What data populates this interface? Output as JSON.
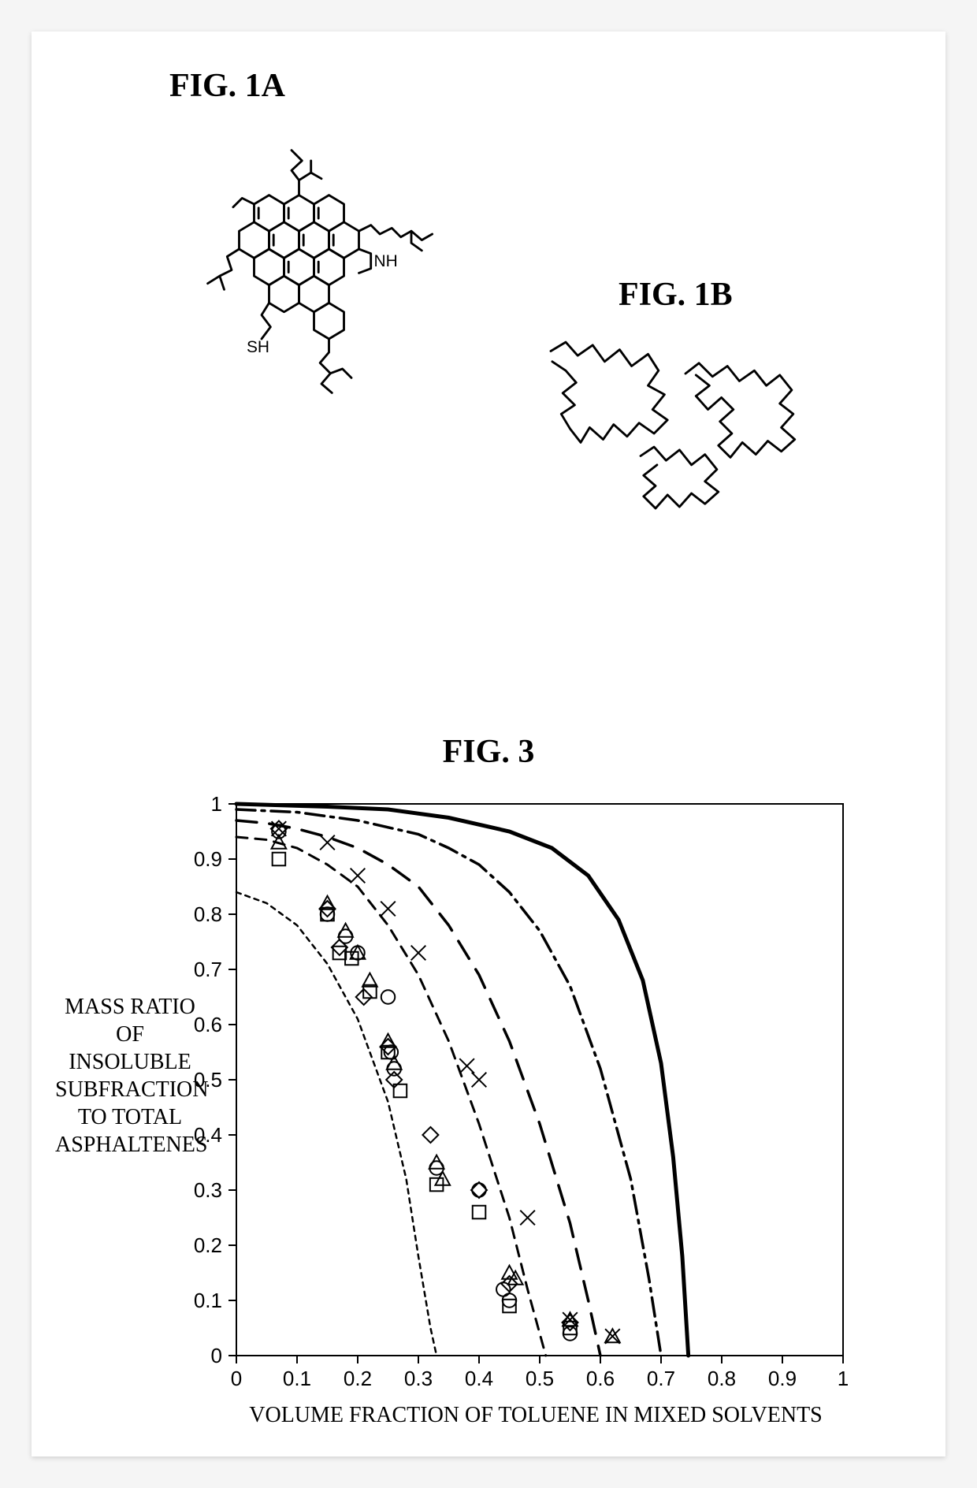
{
  "figures": {
    "a": {
      "label": "FIG. 1A",
      "atom_labels": {
        "nh": "NH",
        "sh": "SH"
      }
    },
    "b": {
      "label": "FIG. 1B"
    },
    "chart": {
      "label": "FIG. 3"
    }
  },
  "chart": {
    "type": "scatter-with-curves",
    "x_label": "VOLUME FRACTION OF TOLUENE IN MIXED SOLVENTS",
    "y_label": "MASS RATIO OF INSOLUBLE SUBFRACTION TO TOTAL ASPHALTENES",
    "xlim": [
      0,
      1
    ],
    "ylim": [
      0,
      1
    ],
    "xtick_step": 0.1,
    "ytick_step": 0.1,
    "background_color": "#ffffff",
    "axis_color": "#000000",
    "axis_width": 2,
    "tick_fontsize": 26,
    "curves": [
      {
        "name": "fine-dash",
        "dash": "6,6",
        "width": 2.5,
        "color": "#000000",
        "pts": [
          [
            0,
            0.84
          ],
          [
            0.05,
            0.82
          ],
          [
            0.1,
            0.78
          ],
          [
            0.15,
            0.71
          ],
          [
            0.2,
            0.61
          ],
          [
            0.25,
            0.46
          ],
          [
            0.28,
            0.32
          ],
          [
            0.3,
            0.18
          ],
          [
            0.32,
            0.05
          ],
          [
            0.33,
            0.0
          ]
        ]
      },
      {
        "name": "med-dash",
        "dash": "14,10",
        "width": 3.0,
        "color": "#000000",
        "pts": [
          [
            0,
            0.94
          ],
          [
            0.05,
            0.935
          ],
          [
            0.1,
            0.92
          ],
          [
            0.15,
            0.89
          ],
          [
            0.2,
            0.85
          ],
          [
            0.25,
            0.78
          ],
          [
            0.3,
            0.69
          ],
          [
            0.35,
            0.57
          ],
          [
            0.4,
            0.42
          ],
          [
            0.45,
            0.25
          ],
          [
            0.48,
            0.12
          ],
          [
            0.51,
            0.0
          ]
        ]
      },
      {
        "name": "long-dash",
        "dash": "26,16",
        "width": 3.5,
        "color": "#000000",
        "pts": [
          [
            0,
            0.97
          ],
          [
            0.05,
            0.965
          ],
          [
            0.1,
            0.955
          ],
          [
            0.15,
            0.94
          ],
          [
            0.2,
            0.92
          ],
          [
            0.25,
            0.89
          ],
          [
            0.3,
            0.85
          ],
          [
            0.35,
            0.78
          ],
          [
            0.4,
            0.69
          ],
          [
            0.45,
            0.57
          ],
          [
            0.5,
            0.42
          ],
          [
            0.55,
            0.24
          ],
          [
            0.58,
            0.1
          ],
          [
            0.6,
            0.0
          ]
        ]
      },
      {
        "name": "dash-dot",
        "dash": "24,8,4,8",
        "width": 3.5,
        "color": "#000000",
        "pts": [
          [
            0,
            0.99
          ],
          [
            0.1,
            0.985
          ],
          [
            0.2,
            0.97
          ],
          [
            0.3,
            0.945
          ],
          [
            0.35,
            0.92
          ],
          [
            0.4,
            0.89
          ],
          [
            0.45,
            0.84
          ],
          [
            0.5,
            0.77
          ],
          [
            0.55,
            0.67
          ],
          [
            0.6,
            0.52
          ],
          [
            0.65,
            0.32
          ],
          [
            0.68,
            0.14
          ],
          [
            0.7,
            0.0
          ]
        ]
      },
      {
        "name": "solid",
        "dash": "",
        "width": 5.0,
        "color": "#000000",
        "pts": [
          [
            0,
            1.0
          ],
          [
            0.15,
            0.995
          ],
          [
            0.25,
            0.99
          ],
          [
            0.35,
            0.975
          ],
          [
            0.45,
            0.95
          ],
          [
            0.52,
            0.92
          ],
          [
            0.58,
            0.87
          ],
          [
            0.63,
            0.79
          ],
          [
            0.67,
            0.68
          ],
          [
            0.7,
            0.53
          ],
          [
            0.72,
            0.36
          ],
          [
            0.735,
            0.18
          ],
          [
            0.745,
            0.0
          ]
        ]
      }
    ],
    "markers": {
      "size": 14,
      "stroke": "#000000",
      "stroke_width": 2,
      "fill": "none",
      "diamond": [
        [
          0.07,
          0.955
        ],
        [
          0.15,
          0.81
        ],
        [
          0.17,
          0.74
        ],
        [
          0.21,
          0.65
        ],
        [
          0.25,
          0.56
        ],
        [
          0.26,
          0.5
        ],
        [
          0.32,
          0.4
        ],
        [
          0.4,
          0.3
        ],
        [
          0.45,
          0.13
        ],
        [
          0.55,
          0.06
        ]
      ],
      "circle": [
        [
          0.07,
          0.95
        ],
        [
          0.15,
          0.8
        ],
        [
          0.18,
          0.76
        ],
        [
          0.2,
          0.73
        ],
        [
          0.25,
          0.65
        ],
        [
          0.255,
          0.55
        ],
        [
          0.26,
          0.52
        ],
        [
          0.33,
          0.34
        ],
        [
          0.4,
          0.3
        ],
        [
          0.44,
          0.12
        ],
        [
          0.45,
          0.1
        ],
        [
          0.55,
          0.04
        ]
      ],
      "triangle": [
        [
          0.07,
          0.93
        ],
        [
          0.15,
          0.82
        ],
        [
          0.18,
          0.77
        ],
        [
          0.2,
          0.73
        ],
        [
          0.22,
          0.68
        ],
        [
          0.25,
          0.57
        ],
        [
          0.26,
          0.53
        ],
        [
          0.33,
          0.35
        ],
        [
          0.34,
          0.32
        ],
        [
          0.45,
          0.15
        ],
        [
          0.46,
          0.14
        ],
        [
          0.55,
          0.065
        ],
        [
          0.62,
          0.035
        ]
      ],
      "square": [
        [
          0.07,
          0.9
        ],
        [
          0.15,
          0.8
        ],
        [
          0.17,
          0.73
        ],
        [
          0.19,
          0.72
        ],
        [
          0.22,
          0.66
        ],
        [
          0.25,
          0.55
        ],
        [
          0.27,
          0.48
        ],
        [
          0.33,
          0.31
        ],
        [
          0.4,
          0.26
        ],
        [
          0.45,
          0.09
        ],
        [
          0.55,
          0.05
        ]
      ],
      "cross": [
        [
          0.07,
          0.955
        ],
        [
          0.15,
          0.93
        ],
        [
          0.2,
          0.87
        ],
        [
          0.25,
          0.81
        ],
        [
          0.3,
          0.73
        ],
        [
          0.38,
          0.525
        ],
        [
          0.4,
          0.5
        ],
        [
          0.48,
          0.25
        ],
        [
          0.55,
          0.065
        ],
        [
          0.62,
          0.035
        ]
      ]
    }
  }
}
